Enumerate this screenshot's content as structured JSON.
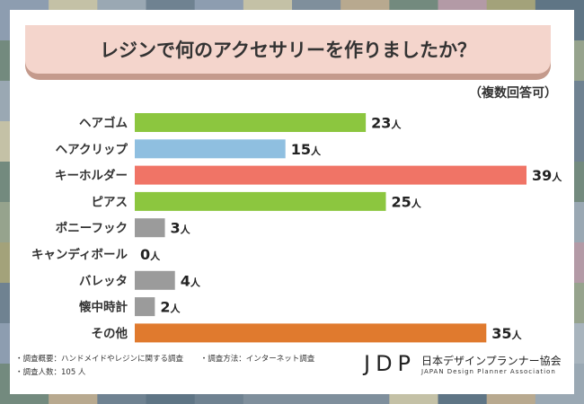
{
  "chart_data": {
    "type": "bar",
    "orientation": "horizontal",
    "title": "レジンで何のアクセサリーを作りましたか？",
    "note": "（複数回答可）",
    "unit": "人",
    "categories": [
      "ヘアゴム",
      "ヘアクリップ",
      "キーホルダー",
      "ピアス",
      "ポニーフック",
      "キャンディボール",
      "バレッタ",
      "懐中時計",
      "その他"
    ],
    "values": [
      23,
      15,
      39,
      25,
      3,
      0,
      4,
      2,
      35
    ],
    "colors": [
      "#8cc63f",
      "#8fbfe0",
      "#f07466",
      "#8cc63f",
      "#9b9b9b",
      "#9b9b9b",
      "#9b9b9b",
      "#9b9b9b",
      "#e07a2e"
    ],
    "xlim": [
      0,
      39
    ],
    "grid": false,
    "legend": "none"
  },
  "footer": {
    "survey_outline": "・調査概要：ハンドメイドやレジンに関する調査",
    "survey_method": "・調査方法：インターネット調査",
    "respondents": "・調査人数：105 人"
  },
  "logo": {
    "mark": "JDP",
    "name_jp": "日本デザインプランナー協会",
    "name_en": "JAPAN Design Planner Association"
  }
}
